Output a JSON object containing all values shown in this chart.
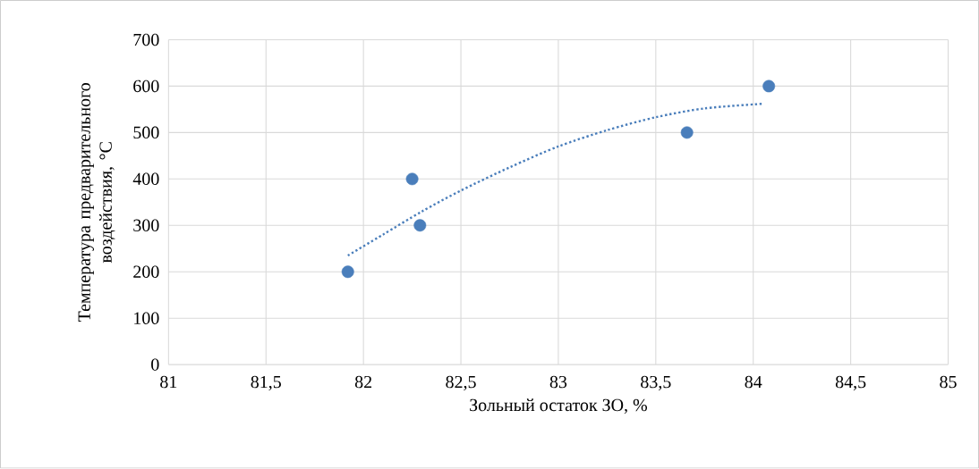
{
  "chart_data": {
    "type": "scatter",
    "xlabel": "Зольный остаток ЗО, %",
    "ylabel": "Температура предварительного воздействия, °C",
    "xlim": [
      81,
      85
    ],
    "ylim": [
      0,
      700
    ],
    "xticks": [
      81,
      {
        "value": 81.5,
        "label": "81,5"
      },
      82,
      {
        "value": 82.5,
        "label": "82,5"
      },
      83,
      {
        "value": 83.5,
        "label": "83,5"
      },
      84,
      {
        "value": 84.5,
        "label": "84,5"
      },
      85
    ],
    "yticks": [
      0,
      100,
      200,
      300,
      400,
      500,
      600,
      700
    ],
    "grid": true,
    "series": [
      {
        "color": "#4a7ebb",
        "marker": "circle",
        "x": [
          81.92,
          82.25,
          82.29,
          83.66,
          84.08
        ],
        "values": [
          200,
          400,
          300,
          500,
          600
        ]
      },
      {
        "type": "line",
        "color": "#4a7ebb",
        "marker": "none",
        "line_style": "dotted",
        "x": [
          81.92,
          82.1,
          82.3,
          82.5,
          82.75,
          83,
          83.25,
          83.5,
          83.75,
          84.05
        ],
        "values": [
          235,
          280,
          330,
          375,
          425,
          470,
          505,
          533,
          552,
          562
        ]
      }
    ]
  }
}
